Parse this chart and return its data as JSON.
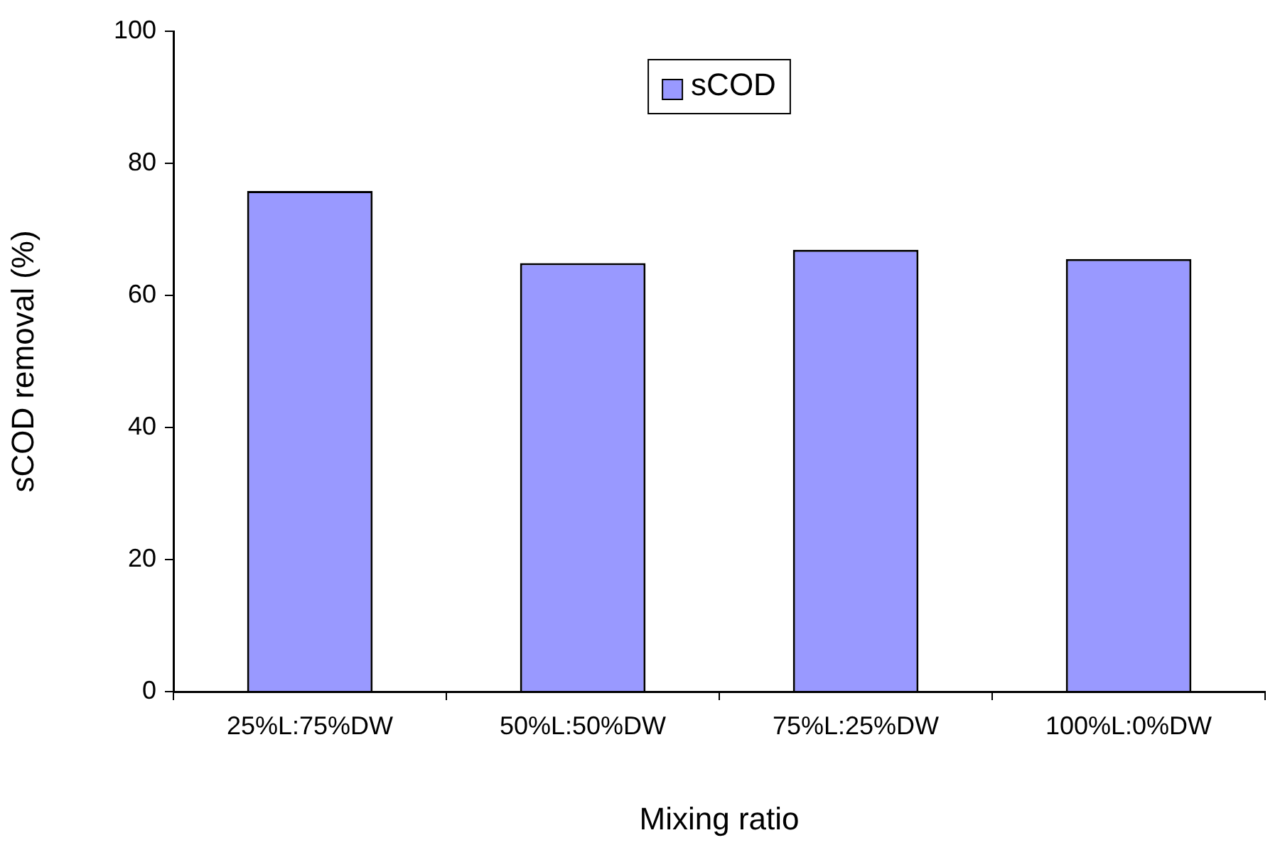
{
  "chart_data": {
    "type": "bar",
    "xlabel": "Mixing ratio",
    "ylabel": "sCOD removal (%)",
    "categories": [
      "25%L:75%DW",
      "50%L:50%DW",
      "75%L:25%DW",
      "100%L:0%DW"
    ],
    "series": [
      {
        "name": "sCOD",
        "color": "#9999ff",
        "values": [
          75.8,
          64.9,
          66.9,
          65.5
        ]
      }
    ],
    "ylim": [
      0,
      100
    ],
    "yticks": [
      0,
      20,
      40,
      60,
      80,
      100
    ],
    "grid": false,
    "legend": "top"
  }
}
